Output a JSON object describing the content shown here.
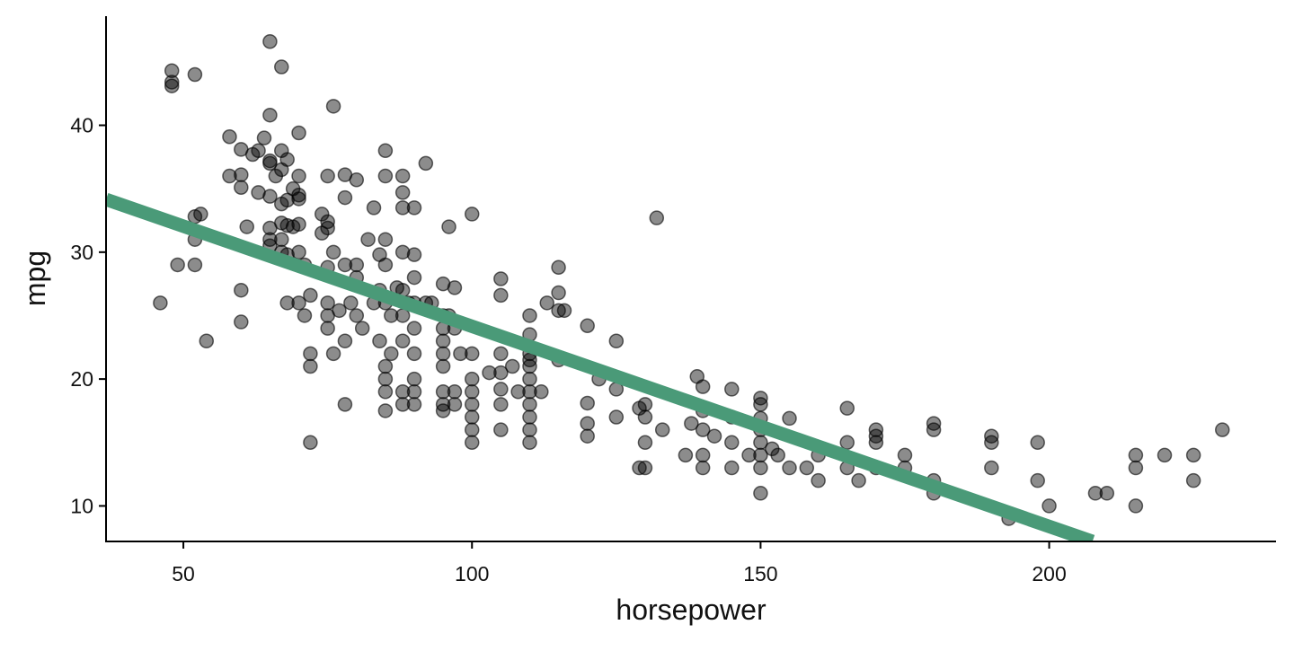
{
  "chart_data": {
    "type": "scatter",
    "x_label": "horsepower",
    "y_label": "mpg",
    "xlim": [
      36.6,
      239.3
    ],
    "ylim": [
      7.2,
      48.6
    ],
    "xticks": [
      50,
      100,
      150,
      200
    ],
    "yticks": [
      10,
      20,
      30,
      40
    ],
    "point_color": "#000000",
    "x": [
      46,
      48,
      48,
      48,
      49,
      52,
      52,
      52,
      52,
      53,
      54,
      58,
      58,
      60,
      60,
      60,
      60,
      60,
      61,
      62,
      63,
      63,
      64,
      65,
      65,
      65,
      65,
      65,
      65,
      65,
      65,
      66,
      67,
      67,
      67,
      67,
      67,
      67,
      67,
      68,
      68,
      68,
      68,
      68,
      69,
      69,
      70,
      70,
      70,
      70,
      70,
      70,
      70,
      71,
      71,
      72,
      72,
      72,
      72,
      74,
      74,
      75,
      75,
      75,
      75,
      75,
      75,
      75,
      76,
      76,
      76,
      77,
      78,
      78,
      78,
      78,
      78,
      79,
      80,
      80,
      80,
      80,
      81,
      82,
      83,
      83,
      84,
      84,
      84,
      85,
      85,
      85,
      85,
      85,
      85,
      85,
      85,
      85,
      86,
      86,
      87,
      88,
      88,
      88,
      88,
      88,
      88,
      88,
      88,
      88,
      89,
      90,
      90,
      90,
      90,
      90,
      90,
      90,
      90,
      90,
      92,
      92,
      93,
      95,
      95,
      95,
      95,
      95,
      95,
      95,
      95,
      95,
      96,
      96,
      97,
      97,
      97,
      97,
      98,
      100,
      100,
      100,
      100,
      100,
      100,
      100,
      100,
      103,
      105,
      105,
      105,
      105,
      105,
      105,
      105,
      107,
      108,
      110,
      110,
      110,
      110,
      110,
      110,
      110,
      110,
      110,
      110,
      110,
      112,
      113,
      115,
      115,
      115,
      115,
      116,
      120,
      120,
      120,
      120,
      122,
      125,
      125,
      125,
      129,
      129,
      130,
      130,
      130,
      130,
      132,
      133,
      137,
      138,
      139,
      140,
      140,
      140,
      140,
      140,
      142,
      145,
      145,
      145,
      145,
      148,
      150,
      150,
      150,
      150,
      150,
      150,
      150,
      150,
      152,
      153,
      155,
      155,
      158,
      160,
      160,
      165,
      165,
      165,
      167,
      170,
      170,
      170,
      170,
      175,
      175,
      180,
      180,
      180,
      180,
      190,
      190,
      190,
      193,
      198,
      198,
      200,
      208,
      210,
      215,
      215,
      215,
      220,
      225,
      225,
      230
    ],
    "values": [
      26,
      43.1,
      43.4,
      44.3,
      29,
      44,
      32.8,
      31,
      29,
      33,
      23,
      39.1,
      36,
      38.1,
      36.1,
      35.1,
      27,
      24.5,
      32,
      37.7,
      38,
      34.7,
      39,
      46.6,
      40.8,
      37.2,
      37,
      34.4,
      31.9,
      31,
      30.5,
      36,
      44.6,
      38,
      36.5,
      33.8,
      32.3,
      31,
      30,
      37.3,
      34.1,
      32.1,
      29.8,
      26,
      35,
      32,
      39.4,
      36,
      34.5,
      34.2,
      32.2,
      30,
      26,
      25,
      29,
      26.6,
      22,
      21,
      15,
      33,
      31.5,
      36,
      32.4,
      31.9,
      28.8,
      26,
      25,
      24,
      41.5,
      30,
      22,
      25.4,
      36.1,
      34.3,
      29,
      23,
      18,
      26,
      35.7,
      29,
      28,
      25,
      24,
      31,
      33.5,
      26,
      29.8,
      27,
      23,
      38,
      36,
      31,
      29,
      26,
      21,
      20,
      19,
      17.5,
      22,
      25,
      27.2,
      36,
      34.7,
      33.5,
      30,
      27,
      25,
      23,
      19,
      18,
      26,
      33.5,
      29.8,
      28,
      26,
      24,
      22,
      20,
      19,
      18,
      37,
      26,
      26,
      27.5,
      25,
      24,
      23,
      22,
      21,
      19,
      18,
      17.5,
      32,
      25,
      27.2,
      24,
      19,
      18,
      22,
      33,
      22,
      20,
      19,
      18,
      17,
      16,
      15,
      20.5,
      27.9,
      26.6,
      22,
      20.5,
      19.2,
      18,
      16,
      21,
      19,
      25,
      23.5,
      22,
      21.5,
      21,
      20,
      19,
      18,
      17,
      16,
      15,
      19,
      26,
      28.8,
      26.8,
      25.4,
      21.5,
      25.4,
      24.2,
      18.1,
      16.5,
      15.5,
      20,
      23,
      19.2,
      17,
      17.7,
      13,
      18,
      17,
      15,
      13,
      32.7,
      16,
      14,
      16.5,
      20.2,
      19.4,
      17.5,
      16,
      14,
      13,
      15.5,
      19.2,
      17,
      15,
      13,
      14,
      18.5,
      18,
      16.9,
      16,
      15,
      14,
      13,
      11,
      14.5,
      14,
      16.9,
      13,
      13,
      14,
      12,
      17.7,
      15,
      13,
      12,
      16,
      15.5,
      15,
      13,
      14,
      13,
      16.5,
      16,
      12,
      11,
      15.5,
      15,
      13,
      9,
      15,
      12,
      10,
      11,
      11,
      14,
      13,
      10,
      14,
      14,
      12,
      16
    ],
    "fit": {
      "color": "#4a9a78",
      "x": [
        36.6,
        207.5
      ],
      "values": [
        34.16,
        7.2
      ]
    }
  }
}
